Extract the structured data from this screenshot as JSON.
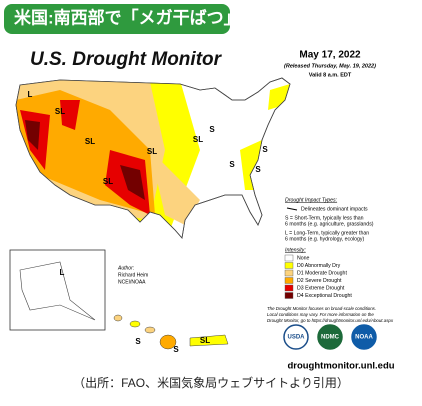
{
  "header": {
    "badge": "米国:南西部で「メガ干ばつ」"
  },
  "map": {
    "title": "U.S. Drought Monitor",
    "date": "May 17, 2022",
    "released": "(Released Thursday, May. 19, 2022)",
    "valid": "Valid 8 a.m. EDT",
    "map_labels": [
      "L",
      "SL",
      "SL",
      "SL",
      "SL",
      "SL",
      "S",
      "S",
      "S",
      "S",
      "L",
      "S",
      "S",
      "SL"
    ],
    "impact": {
      "title": "Drought Impact Types:",
      "delineates": "Delineates dominant impacts",
      "short": [
        "S = Short-Term, typically less than",
        "6 months (e.g. agriculture, grasslands)"
      ],
      "long": [
        "L = Long-Term, typically greater than",
        "6 months (e.g. hydrology, ecology)"
      ]
    },
    "intensity": {
      "title": "Intensity:",
      "items": [
        {
          "label": "None",
          "color": "#ffffff"
        },
        {
          "label": "D0 Abnormally Dry",
          "color": "#ffff00"
        },
        {
          "label": "D1 Moderate Drought",
          "color": "#fcd37f"
        },
        {
          "label": "D2 Severe Drought",
          "color": "#ffaa00"
        },
        {
          "label": "D3 Extreme Drought",
          "color": "#e60000"
        },
        {
          "label": "D4 Exceptional Drought",
          "color": "#730000"
        }
      ]
    },
    "note": [
      "The Drought Monitor focuses on broad-scale conditions.",
      "Local conditions may vary. For more information on the",
      "Drought Monitor, go to https://droughtmonitor.unl.edu/About.aspx"
    ],
    "author": [
      "Author:",
      "Richard Heim",
      "NCEI/NOAA"
    ],
    "logos": [
      "USDA",
      "NDMC",
      "NOAA"
    ],
    "url": "droughtmonitor.unl.edu"
  },
  "caption": "（出所：FAO、米国気象局ウェブサイトより引用）"
}
